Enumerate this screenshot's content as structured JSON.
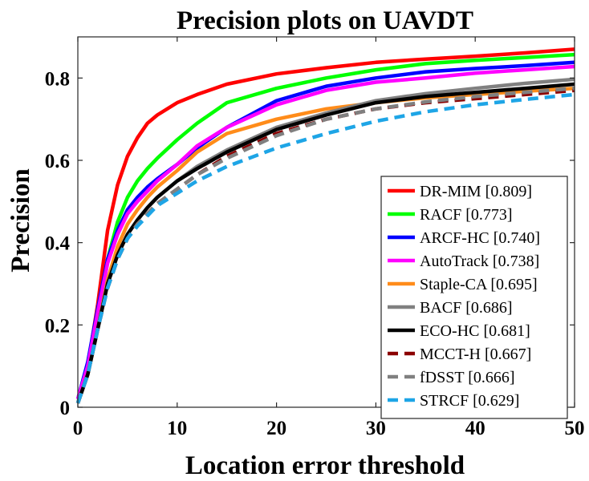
{
  "chart_data": {
    "type": "line",
    "title": "Precision plots on UAVDT",
    "xlabel": "Location error threshold",
    "ylabel": "Precision",
    "xlim": [
      0,
      50
    ],
    "ylim": [
      0,
      0.9
    ],
    "x_ticks": [
      0,
      10,
      20,
      30,
      40,
      50
    ],
    "y_ticks": [
      0,
      0.2,
      0.4,
      0.6,
      0.8
    ],
    "x_tick_labels": [
      "0",
      "10",
      "20",
      "30",
      "40",
      "50"
    ],
    "y_tick_labels": [
      "0",
      "0.2",
      "0.4",
      "0.6",
      "0.8"
    ],
    "grid": false,
    "legend_position": "bottom-right",
    "x": [
      0,
      1,
      2,
      3,
      4,
      5,
      6,
      7,
      8,
      10,
      12,
      15,
      20,
      25,
      30,
      35,
      40,
      45,
      50
    ],
    "series": [
      {
        "name": "DR-MIM",
        "legend": "DR-MIM [0.809]",
        "color": "#ff0000",
        "dash": "solid",
        "values": [
          0.01,
          0.1,
          0.25,
          0.43,
          0.54,
          0.61,
          0.655,
          0.69,
          0.71,
          0.74,
          0.76,
          0.785,
          0.81,
          0.825,
          0.838,
          0.846,
          0.853,
          0.861,
          0.87
        ]
      },
      {
        "name": "RACF",
        "legend": "RACF [0.773]",
        "color": "#00ff00",
        "dash": "solid",
        "values": [
          0.01,
          0.09,
          0.22,
          0.36,
          0.45,
          0.51,
          0.55,
          0.58,
          0.605,
          0.65,
          0.69,
          0.74,
          0.775,
          0.8,
          0.82,
          0.835,
          0.843,
          0.85,
          0.857
        ]
      },
      {
        "name": "ARCF-HC",
        "legend": "ARCF-HC [0.740]",
        "color": "#0000ff",
        "dash": "solid",
        "values": [
          0.02,
          0.11,
          0.24,
          0.36,
          0.43,
          0.48,
          0.51,
          0.535,
          0.555,
          0.59,
          0.63,
          0.68,
          0.745,
          0.78,
          0.8,
          0.815,
          0.823,
          0.83,
          0.838
        ]
      },
      {
        "name": "AutoTrack",
        "legend": "AutoTrack [0.738]",
        "color": "#ff00ff",
        "dash": "solid",
        "values": [
          0.02,
          0.1,
          0.23,
          0.35,
          0.42,
          0.47,
          0.5,
          0.525,
          0.55,
          0.59,
          0.635,
          0.68,
          0.735,
          0.77,
          0.79,
          0.8,
          0.812,
          0.82,
          0.828
        ]
      },
      {
        "name": "Staple-CA",
        "legend": "Staple-CA [0.695]",
        "color": "#ff8c1a",
        "dash": "solid",
        "values": [
          0.01,
          0.08,
          0.19,
          0.31,
          0.39,
          0.445,
          0.48,
          0.51,
          0.535,
          0.575,
          0.62,
          0.665,
          0.7,
          0.725,
          0.74,
          0.752,
          0.76,
          0.768,
          0.775
        ]
      },
      {
        "name": "BACF",
        "legend": "BACF [0.686]",
        "color": "#808080",
        "dash": "solid",
        "values": [
          0.01,
          0.08,
          0.19,
          0.3,
          0.37,
          0.42,
          0.455,
          0.485,
          0.51,
          0.55,
          0.585,
          0.625,
          0.68,
          0.715,
          0.745,
          0.762,
          0.775,
          0.787,
          0.797
        ]
      },
      {
        "name": "ECO-HC",
        "legend": "ECO-HC [0.681]",
        "color": "#000000",
        "dash": "solid",
        "values": [
          0.01,
          0.08,
          0.19,
          0.3,
          0.37,
          0.42,
          0.455,
          0.485,
          0.51,
          0.55,
          0.58,
          0.62,
          0.675,
          0.71,
          0.74,
          0.755,
          0.765,
          0.775,
          0.785
        ]
      },
      {
        "name": "MCCT-H",
        "legend": "MCCT-H [0.667]",
        "color": "#8b0000",
        "dash": "dashed",
        "values": [
          0.01,
          0.08,
          0.19,
          0.29,
          0.36,
          0.41,
          0.445,
          0.47,
          0.495,
          0.53,
          0.565,
          0.61,
          0.665,
          0.7,
          0.725,
          0.74,
          0.75,
          0.76,
          0.77
        ]
      },
      {
        "name": "fDSST",
        "legend": "fDSST [0.666]",
        "color": "#808080",
        "dash": "dashed",
        "values": [
          0.01,
          0.08,
          0.19,
          0.29,
          0.36,
          0.41,
          0.445,
          0.47,
          0.495,
          0.53,
          0.565,
          0.605,
          0.66,
          0.7,
          0.725,
          0.742,
          0.755,
          0.765,
          0.775
        ]
      },
      {
        "name": "STRCF",
        "legend": "STRCF [0.629]",
        "color": "#1ea5e6",
        "dash": "dashed",
        "values": [
          0.01,
          0.08,
          0.19,
          0.29,
          0.36,
          0.41,
          0.44,
          0.465,
          0.49,
          0.52,
          0.55,
          0.585,
          0.63,
          0.665,
          0.695,
          0.718,
          0.735,
          0.748,
          0.76
        ]
      }
    ]
  }
}
